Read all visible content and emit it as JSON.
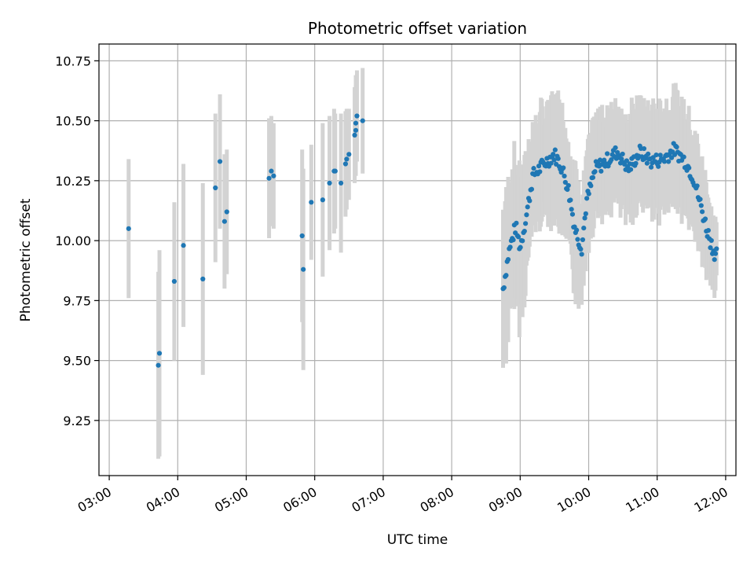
{
  "chart_data": {
    "type": "scatter",
    "title": "Photometric offset variation",
    "xlabel": "UTC time",
    "ylabel": "Photometric offset",
    "x_ticks": [
      "03:00",
      "04:00",
      "05:00",
      "06:00",
      "07:00",
      "08:00",
      "09:00",
      "10:00",
      "11:00",
      "12:00"
    ],
    "y_ticks": [
      "9.25",
      "9.50",
      "9.75",
      "10.00",
      "10.25",
      "10.50",
      "10.75"
    ],
    "xlim_hours": [
      2.85,
      12.15
    ],
    "ylim": [
      9.02,
      10.82
    ],
    "grid": true,
    "colors": {
      "points": "#1f77b4",
      "errorbars": "#d3d3d3",
      "grid": "#b0b0b0"
    },
    "points": [
      {
        "t": "03:17",
        "y": 10.05,
        "e": 0.29
      },
      {
        "t": "03:43",
        "y": 9.48,
        "e": 0.39
      },
      {
        "t": "03:44",
        "y": 9.53,
        "e": 0.43
      },
      {
        "t": "03:57",
        "y": 9.83,
        "e": 0.33
      },
      {
        "t": "04:05",
        "y": 9.98,
        "e": 0.34
      },
      {
        "t": "04:22",
        "y": 9.84,
        "e": 0.4
      },
      {
        "t": "04:33",
        "y": 10.22,
        "e": 0.31
      },
      {
        "t": "04:37",
        "y": 10.33,
        "e": 0.28
      },
      {
        "t": "04:41",
        "y": 10.08,
        "e": 0.28
      },
      {
        "t": "04:43",
        "y": 10.12,
        "e": 0.26
      },
      {
        "t": "05:20",
        "y": 10.26,
        "e": 0.25
      },
      {
        "t": "05:22",
        "y": 10.29,
        "e": 0.23
      },
      {
        "t": "05:24",
        "y": 10.27,
        "e": 0.22
      },
      {
        "t": "05:49",
        "y": 10.02,
        "e": 0.36
      },
      {
        "t": "05:50",
        "y": 9.88,
        "e": 0.42
      },
      {
        "t": "05:57",
        "y": 10.16,
        "e": 0.24
      },
      {
        "t": "06:07",
        "y": 10.17,
        "e": 0.32
      },
      {
        "t": "06:13",
        "y": 10.24,
        "e": 0.28
      },
      {
        "t": "06:17",
        "y": 10.29,
        "e": 0.26
      },
      {
        "t": "06:18",
        "y": 10.29,
        "e": 0.24
      },
      {
        "t": "06:23",
        "y": 10.24,
        "e": 0.29
      },
      {
        "t": "06:27",
        "y": 10.32,
        "e": 0.22
      },
      {
        "t": "06:28",
        "y": 10.34,
        "e": 0.21
      },
      {
        "t": "06:30",
        "y": 10.36,
        "e": 0.19
      },
      {
        "t": "06:35",
        "y": 10.44,
        "e": 0.2
      },
      {
        "t": "06:36",
        "y": 10.46,
        "e": 0.19
      },
      {
        "t": "06:36",
        "y": 10.49,
        "e": 0.2
      },
      {
        "t": "06:37",
        "y": 10.52,
        "e": 0.19
      },
      {
        "t": "06:42",
        "y": 10.5,
        "e": 0.22
      }
    ],
    "dense_segment": {
      "time_range": [
        "08:45",
        "11:52"
      ],
      "profile": [
        {
          "t": "08:45",
          "y": 9.8,
          "e": 0.32
        },
        {
          "t": "08:50",
          "y": 9.95,
          "e": 0.3
        },
        {
          "t": "08:56",
          "y": 10.06,
          "e": 0.28
        },
        {
          "t": "09:00",
          "y": 9.97,
          "e": 0.3
        },
        {
          "t": "09:06",
          "y": 10.12,
          "e": 0.24
        },
        {
          "t": "09:11",
          "y": 10.27,
          "e": 0.2
        },
        {
          "t": "09:17",
          "y": 10.3,
          "e": 0.22
        },
        {
          "t": "09:23",
          "y": 10.33,
          "e": 0.21
        },
        {
          "t": "09:30",
          "y": 10.36,
          "e": 0.24
        },
        {
          "t": "09:36",
          "y": 10.31,
          "e": 0.24
        },
        {
          "t": "09:42",
          "y": 10.22,
          "e": 0.22
        },
        {
          "t": "09:48",
          "y": 10.05,
          "e": 0.25
        },
        {
          "t": "09:54",
          "y": 9.97,
          "e": 0.2
        },
        {
          "t": "09:58",
          "y": 10.16,
          "e": 0.2
        },
        {
          "t": "10:06",
          "y": 10.3,
          "e": 0.2
        },
        {
          "t": "10:15",
          "y": 10.33,
          "e": 0.2
        },
        {
          "t": "10:25",
          "y": 10.37,
          "e": 0.2
        },
        {
          "t": "10:35",
          "y": 10.3,
          "e": 0.21
        },
        {
          "t": "10:45",
          "y": 10.37,
          "e": 0.2
        },
        {
          "t": "10:55",
          "y": 10.33,
          "e": 0.2
        },
        {
          "t": "11:05",
          "y": 10.34,
          "e": 0.22
        },
        {
          "t": "11:15",
          "y": 10.38,
          "e": 0.21
        },
        {
          "t": "11:25",
          "y": 10.33,
          "e": 0.22
        },
        {
          "t": "11:32",
          "y": 10.26,
          "e": 0.2
        },
        {
          "t": "11:38",
          "y": 10.15,
          "e": 0.2
        },
        {
          "t": "11:44",
          "y": 10.04,
          "e": 0.18
        },
        {
          "t": "11:50",
          "y": 9.95,
          "e": 0.14
        }
      ]
    }
  }
}
